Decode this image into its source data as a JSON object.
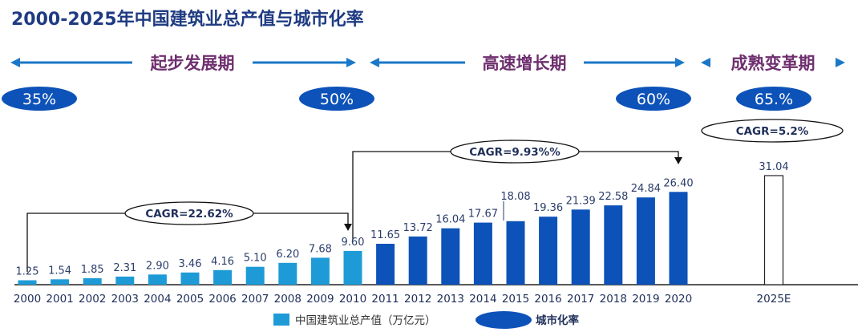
{
  "title": "2000-2025年中国建筑业总产值与城市化率",
  "phases": [
    {
      "label": "起步发展期"
    },
    {
      "label": "高速增长期"
    },
    {
      "label": "成熟变革期"
    }
  ],
  "urbanization_markers": [
    "35%",
    "50%",
    "60%",
    "65.%"
  ],
  "cagr_labels": [
    "CAGR=22.62%",
    "CAGR=9.93%%",
    "CAGR=5.2%"
  ],
  "legend": {
    "bar_label": "中国建筑业总产值（万亿元）",
    "ellipse_label": "城市化率"
  },
  "colors": {
    "light_bar": "#1e9bd7",
    "dark_bar": "#0d52b8",
    "ellipse": "#0d52b8",
    "phase_text": "#6e2f6e",
    "arrow": "#1b78c8",
    "title": "#1f3b82"
  },
  "chart_data": {
    "type": "bar",
    "title": "2000-2025年中国建筑业总产值与城市化率",
    "categories": [
      "2000",
      "2001",
      "2002",
      "2003",
      "2004",
      "2005",
      "2006",
      "2007",
      "2008",
      "2009",
      "2010",
      "2011",
      "2012",
      "2013",
      "2014",
      "2015",
      "2016",
      "2017",
      "2018",
      "2019",
      "2020",
      "2025E"
    ],
    "series": [
      {
        "name": "中国建筑业总产值（万亿元）",
        "values": [
          1.25,
          1.54,
          1.85,
          2.31,
          2.9,
          3.46,
          4.16,
          5.1,
          6.2,
          7.68,
          9.6,
          11.65,
          13.72,
          16.04,
          17.67,
          18.08,
          19.36,
          21.39,
          22.58,
          24.84,
          26.4,
          31.04
        ],
        "value_labels": [
          "1.25",
          "1.54",
          "1.85",
          "2.31",
          "2.90",
          "3.46",
          "4.16",
          "5.10",
          "6.20",
          "7.68",
          "9.60",
          "11.65",
          "13.72",
          "16.04",
          "17.67",
          "18.08",
          "19.36",
          "21.39",
          "22.58",
          "24.84",
          "26.40",
          "31.04"
        ]
      }
    ],
    "urbanization_rate": [
      {
        "label": "35%"
      },
      {
        "label": "50%"
      },
      {
        "label": "60%"
      },
      {
        "label": "65.%"
      }
    ],
    "cagr": [
      "CAGR=22.62%",
      "CAGR=9.93%%",
      "CAGR=5.2%"
    ],
    "ylim": [
      0,
      31.04
    ],
    "grid": false,
    "legend_position": "bottom"
  }
}
